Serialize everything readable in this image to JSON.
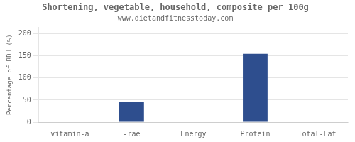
{
  "chart_data": {
    "type": "bar",
    "title": "Shortening, vegetable, household, composite per 100g",
    "subtitle": "www.dietandfitnesstoday.com",
    "ylabel": "Percentage of RDH (%)",
    "categories": [
      "vitamin-a",
      "-rae",
      "Energy",
      "Protein",
      "Total-Fat"
    ],
    "values": [
      0,
      45,
      0,
      155,
      0
    ],
    "color": "#2e4e8e",
    "ylim": [
      0,
      215
    ],
    "yticks": [
      0,
      50,
      100,
      150,
      200
    ],
    "grid": true
  }
}
